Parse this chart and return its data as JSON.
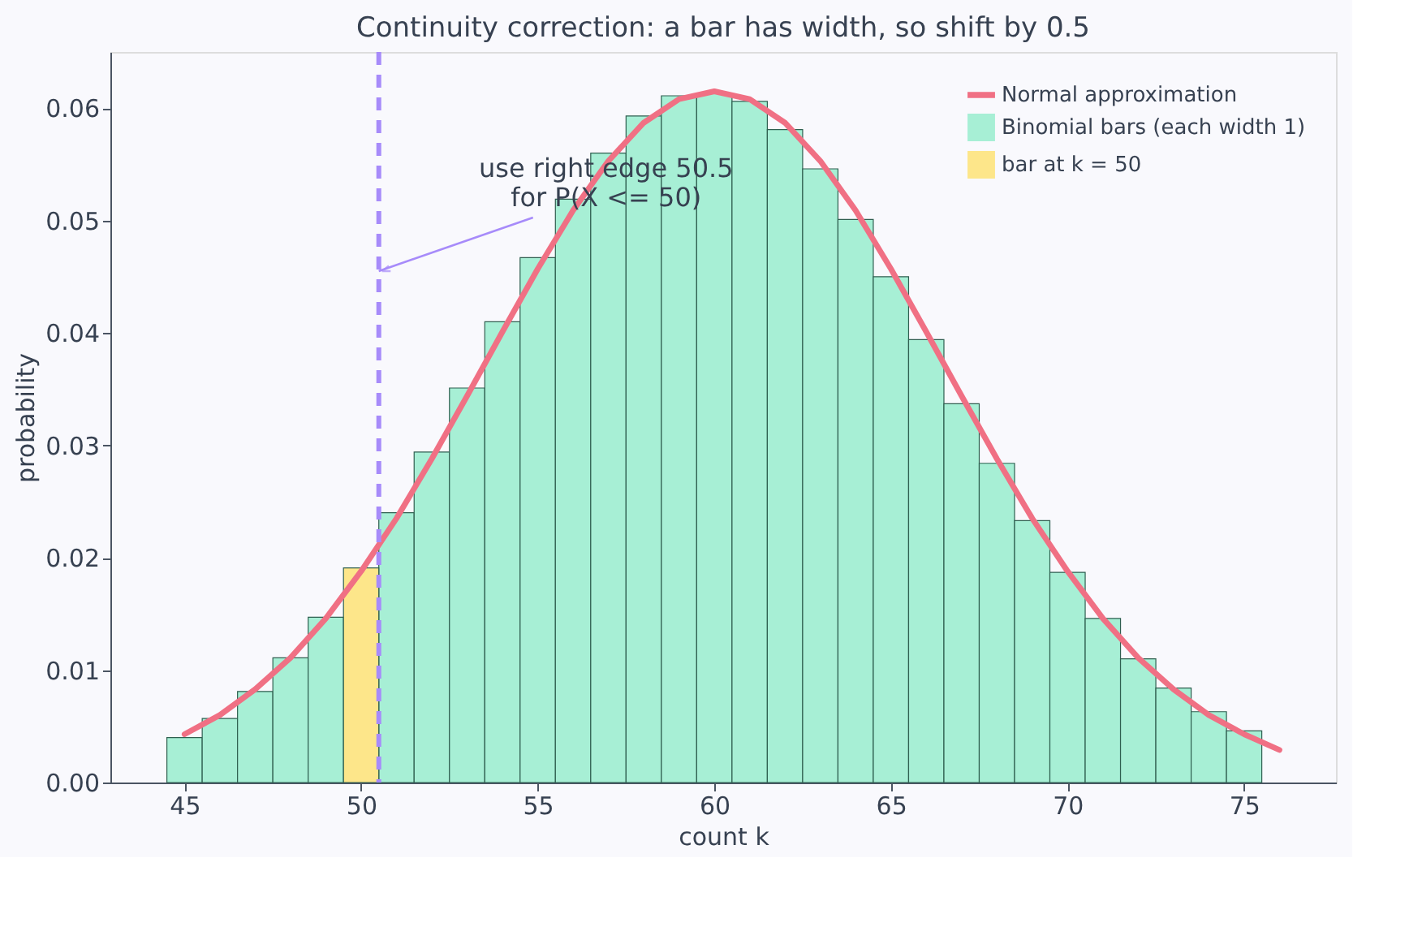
{
  "chart_data": {
    "type": "bar",
    "title": "Continuity correction: a bar has width, so shift by 0.5",
    "xlabel": "count k",
    "ylabel": "probability",
    "x": [
      45,
      46,
      47,
      48,
      49,
      50,
      51,
      52,
      53,
      54,
      55,
      56,
      57,
      58,
      59,
      60,
      61,
      62,
      63,
      64,
      65,
      66,
      67,
      68,
      69,
      70,
      71,
      72,
      73,
      74,
      75
    ],
    "series": [
      {
        "name": "Normal approximation",
        "type": "line",
        "color": "#f07084",
        "line_style": "solid",
        "marker": "none",
        "x": [
          45,
          46,
          47,
          48,
          49,
          50,
          51,
          52,
          53,
          54,
          55,
          56,
          57,
          58,
          59,
          60,
          61,
          62,
          63,
          64,
          65,
          66,
          67,
          68,
          69,
          70,
          71,
          72,
          73,
          74,
          75,
          76
        ],
        "values": [
          0.0043,
          0.006,
          0.0083,
          0.0111,
          0.0146,
          0.0188,
          0.0235,
          0.0288,
          0.0344,
          0.0401,
          0.0457,
          0.0509,
          0.0553,
          0.0587,
          0.0608,
          0.0615,
          0.0608,
          0.0587,
          0.0553,
          0.0509,
          0.0457,
          0.0401,
          0.0344,
          0.0288,
          0.0235,
          0.0188,
          0.0146,
          0.0111,
          0.0083,
          0.006,
          0.0043,
          0.0029
        ]
      },
      {
        "name": "Binomial bars (each width 1)",
        "color": "#a7efd5",
        "values": [
          0.004,
          0.0057,
          0.0081,
          0.0111,
          0.0147,
          null,
          0.024,
          0.0294,
          0.0351,
          0.041,
          0.0467,
          0.0519,
          0.056,
          0.0593,
          0.0611,
          0.0613,
          0.0606,
          0.0581,
          0.0546,
          0.0501,
          0.045,
          0.0394,
          0.0337,
          0.0284,
          0.0233,
          0.0187,
          0.0146,
          0.011,
          0.0084,
          0.0063,
          0.0046
        ]
      },
      {
        "name": "bar at k = 50",
        "color": "#fde68a",
        "values": [
          null,
          null,
          null,
          null,
          null,
          0.0191,
          null,
          null,
          null,
          null,
          null,
          null,
          null,
          null,
          null,
          null,
          null,
          null,
          null,
          null,
          null,
          null,
          null,
          null,
          null,
          null,
          null,
          null,
          null,
          null,
          null
        ]
      }
    ],
    "xlim": [
      42.9,
      77.6
    ],
    "xticks": [
      45,
      50,
      55,
      60,
      65,
      70,
      75
    ],
    "ylim": [
      0,
      0.065
    ],
    "yticks": [
      {
        "value": 0,
        "label": "0.00"
      },
      {
        "value": 0.01,
        "label": "0.01"
      },
      {
        "value": 0.02,
        "label": "0.02"
      },
      {
        "value": 0.03,
        "label": "0.03"
      },
      {
        "value": 0.04,
        "label": "0.04"
      },
      {
        "value": 0.05,
        "label": "0.05"
      },
      {
        "value": 0.06,
        "label": "0.06"
      }
    ],
    "ref_lines": [
      {
        "axis": "x",
        "value": 50.5,
        "color": "#a78bfa",
        "line_style": "dashed"
      }
    ],
    "annotations": [
      {
        "text": "use right edge 50.5\nfor P(X <= 50)",
        "x": 50.5,
        "y": 0.0455
      }
    ],
    "grid": false,
    "legend": "top right"
  }
}
